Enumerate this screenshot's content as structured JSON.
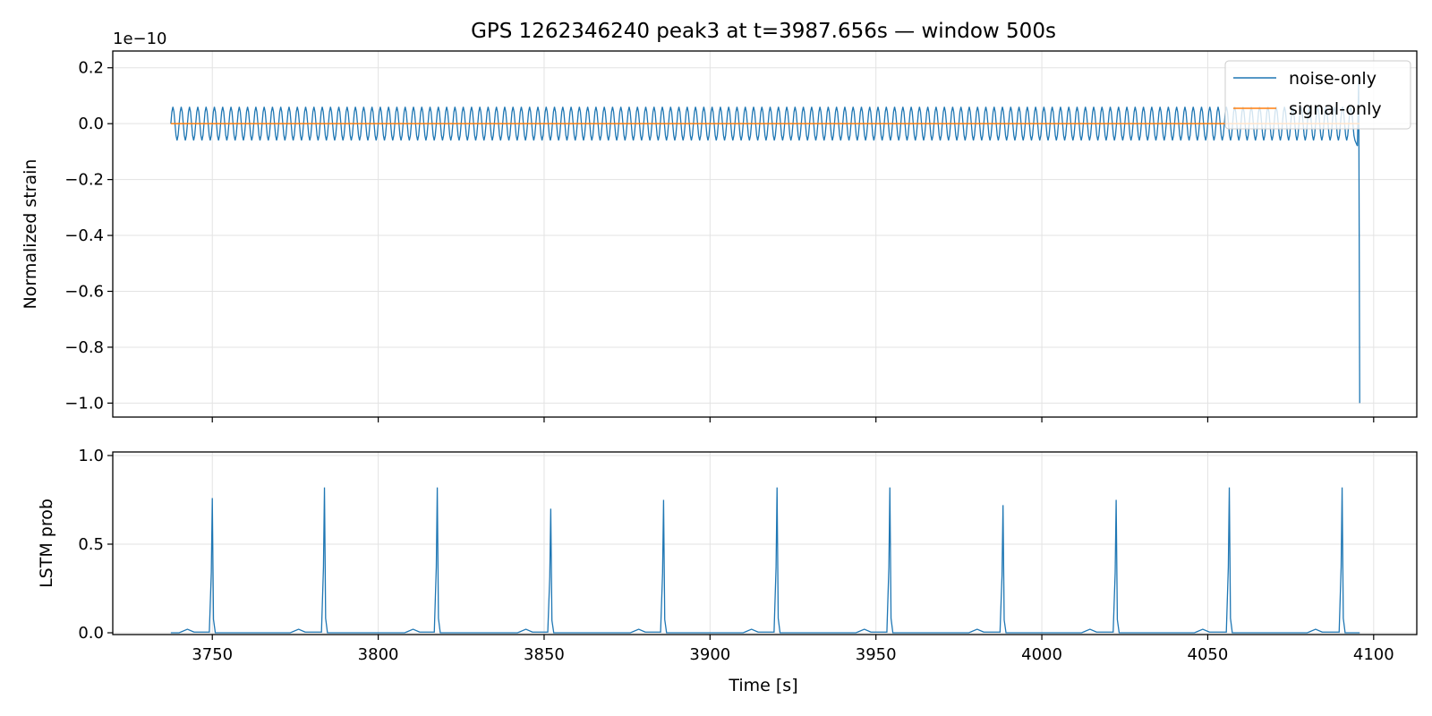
{
  "chart_data": {
    "title": "GPS 1262346240 peak3 at t=3987.656s — window 500s",
    "xlabel": "Time [s]",
    "x_ticks": [
      3750,
      3800,
      3850,
      3900,
      3950,
      4000,
      4050,
      4100
    ],
    "xlim": [
      3720,
      4113
    ],
    "panels": [
      {
        "type": "line",
        "ylabel": "Normalized strain",
        "offset_text": "1e−10",
        "ylim": [
          -1.05,
          0.26
        ],
        "y_ticks": [
          0.2,
          0.0,
          -0.2,
          -0.4,
          -0.6,
          -0.8,
          -1.0
        ],
        "y_tick_labels": [
          "0.2",
          "0.0",
          "−0.2",
          "−0.4",
          "−0.6",
          "−0.8",
          "−1.0"
        ],
        "grid": true,
        "legend_position": "top-right",
        "series": [
          {
            "name": "noise-only",
            "color": "#1f77b4",
            "x_start": 3737.5,
            "x_end": 4094.5,
            "oscillation_amplitude": 0.06,
            "oscillation_period": 2.5,
            "final_value": -1.0,
            "final_time": 4095.8
          },
          {
            "name": "signal-only",
            "color": "#ff7f0e",
            "x": [
              3737.5,
              4095.8
            ],
            "y": [
              0.0,
              0.0
            ]
          }
        ]
      },
      {
        "type": "line",
        "ylabel": "LSTM prob",
        "ylim": [
          -0.01,
          1.02
        ],
        "y_ticks": [
          0.0,
          0.5,
          1.0
        ],
        "y_tick_labels": [
          "0.0",
          "0.5",
          "1.0"
        ],
        "grid": true,
        "series": [
          {
            "name": "",
            "color": "#1f77b4",
            "x_start": 3737.5,
            "x_end": 4095.8,
            "peaks": [
              {
                "x": 3750.0,
                "y": 0.76
              },
              {
                "x": 3783.8,
                "y": 0.82
              },
              {
                "x": 3817.8,
                "y": 0.82
              },
              {
                "x": 3852.0,
                "y": 0.7
              },
              {
                "x": 3886.0,
                "y": 0.75
              },
              {
                "x": 3920.2,
                "y": 0.82
              },
              {
                "x": 3954.2,
                "y": 0.82
              },
              {
                "x": 3988.3,
                "y": 0.72
              },
              {
                "x": 4022.4,
                "y": 0.75
              },
              {
                "x": 4056.5,
                "y": 0.82
              },
              {
                "x": 4090.5,
                "y": 0.82
              }
            ],
            "bumps": [
              3742.5,
              3776.0,
              3810.5,
              3844.5,
              3878.5,
              3912.5,
              3946.5,
              3980.5,
              4014.5,
              4048.5,
              4082.5
            ],
            "bump_height": 0.02
          }
        ]
      }
    ]
  }
}
